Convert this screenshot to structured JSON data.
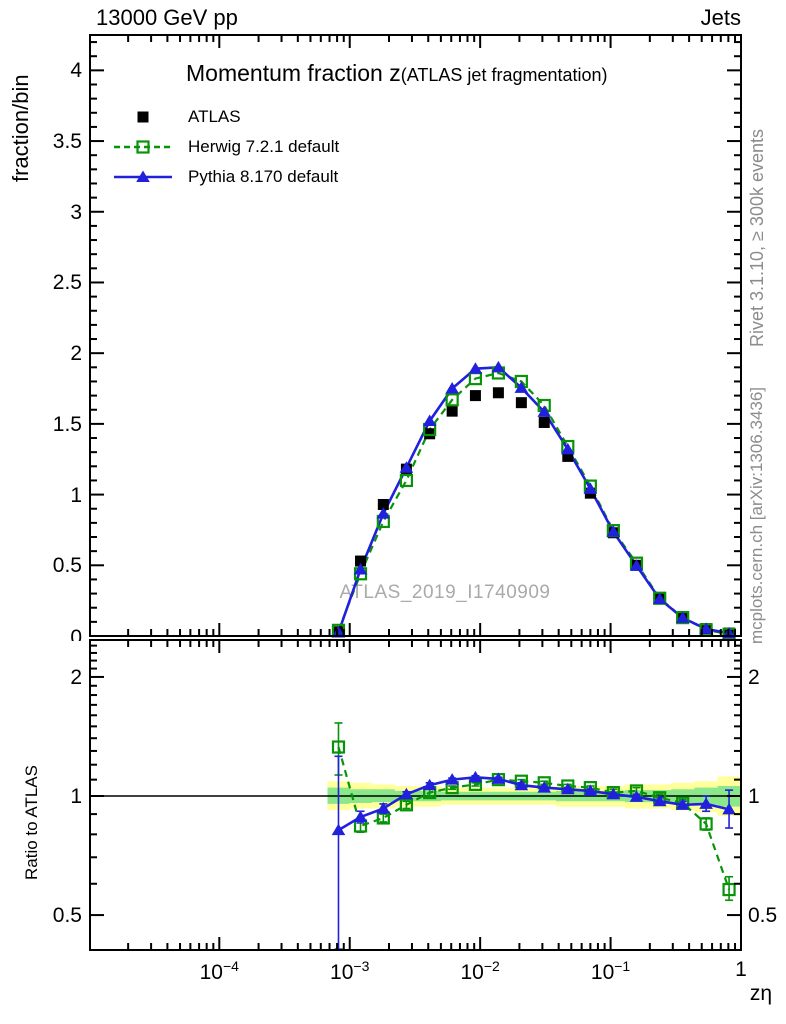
{
  "header": {
    "left": "13000 GeV pp",
    "right": "Jets"
  },
  "side_notes": {
    "top": "Rivet 3.1.10, ≥ 300k events",
    "bottom": "mcplots.cern.ch [arXiv:1306.3436]"
  },
  "watermark": "ATLAS_2019_I1740909",
  "chart_data": {
    "type": "line",
    "title_main": "Momentum fraction z",
    "title_sub": "(ATLAS jet fragmentation)",
    "xlabel": "zη",
    "ylabel": "fraction/bin",
    "ratio_ylabel": "Ratio to ATLAS",
    "x_axis": {
      "scale": "log",
      "min": 1.02e-05,
      "max": 1,
      "major_ticks": [
        {
          "value": 0.0001,
          "base": "10",
          "exp": "−4"
        },
        {
          "value": 0.001,
          "base": "10",
          "exp": "−3"
        },
        {
          "value": 0.01,
          "base": "10",
          "exp": "−2"
        },
        {
          "value": 0.1,
          "base": "10",
          "exp": "−1"
        },
        {
          "value": 1,
          "label": "1"
        }
      ]
    },
    "y_axis": {
      "scale": "linear",
      "min": 0,
      "max": 4.25,
      "major_step": 0.5,
      "minor_step": 0.1,
      "labels": [
        {
          "value": 0,
          "label": "0",
          "clip": true
        },
        {
          "value": 0.5,
          "label": "0.5"
        },
        {
          "value": 1,
          "label": "1"
        },
        {
          "value": 1.5,
          "label": "1.5"
        },
        {
          "value": 2,
          "label": "2"
        },
        {
          "value": 2.5,
          "label": "2.5"
        },
        {
          "value": 3,
          "label": "3"
        },
        {
          "value": 3.5,
          "label": "3.5"
        },
        {
          "value": 4,
          "label": "4"
        }
      ]
    },
    "ratio_axis": {
      "scale": "log",
      "min": 0.408,
      "max": 2.48,
      "labels": [
        {
          "value": 0.5,
          "label": "0.5"
        },
        {
          "value": 1,
          "label": "1"
        },
        {
          "value": 2,
          "label": "2"
        }
      ]
    },
    "x": [
      0.00082,
      0.00121,
      0.00181,
      0.00272,
      0.0041,
      0.0061,
      0.0092,
      0.0138,
      0.0207,
      0.031,
      0.047,
      0.07,
      0.105,
      0.158,
      0.238,
      0.357,
      0.54,
      0.81
    ],
    "series": [
      {
        "name": "ATLAS",
        "marker": "filled-square",
        "color": "#000000",
        "line": "none",
        "values": [
          0.03,
          0.53,
          0.93,
          1.18,
          1.43,
          1.59,
          1.7,
          1.72,
          1.65,
          1.51,
          1.27,
          1.01,
          0.73,
          0.5,
          0.27,
          0.135,
          0.052,
          0.021
        ]
      },
      {
        "name": "Herwig 7.2.1 default",
        "marker": "open-square",
        "color": "#089408",
        "line": "dashed",
        "values": [
          0.04,
          0.44,
          0.81,
          1.1,
          1.46,
          1.67,
          1.82,
          1.86,
          1.8,
          1.63,
          1.34,
          1.06,
          0.745,
          0.515,
          0.267,
          0.13,
          0.044,
          0.012
        ]
      },
      {
        "name": "Pythia 8.170 default",
        "marker": "filled-triangle",
        "color": "#2020dd",
        "line": "solid",
        "values": [
          0.025,
          0.47,
          0.865,
          1.19,
          1.52,
          1.75,
          1.89,
          1.9,
          1.755,
          1.585,
          1.32,
          1.04,
          0.737,
          0.497,
          0.262,
          0.128,
          0.05,
          0.019
        ]
      }
    ],
    "ratio_series": [
      {
        "name": "Herwig 7.2.1 default",
        "marker": "open-square",
        "color": "#089408",
        "line": "dashed",
        "values": [
          1.33,
          0.84,
          0.88,
          0.95,
          1.02,
          1.05,
          1.07,
          1.1,
          1.09,
          1.08,
          1.06,
          1.05,
          1.02,
          1.03,
          0.99,
          0.96,
          0.85,
          0.58
        ],
        "err_lo": [
          1.13,
          0.81,
          0.86,
          0.93,
          1.0,
          1.04,
          1.06,
          1.09,
          1.08,
          1.07,
          1.05,
          1.04,
          1.0,
          1.01,
          0.97,
          0.94,
          0.82,
          0.545
        ],
        "err_hi": [
          1.53,
          0.87,
          0.9,
          0.97,
          1.04,
          1.06,
          1.08,
          1.11,
          1.1,
          1.09,
          1.07,
          1.06,
          1.04,
          1.05,
          1.01,
          0.98,
          0.88,
          0.625
        ]
      },
      {
        "name": "Pythia 8.170 default",
        "marker": "filled-triangle",
        "color": "#2020dd",
        "line": "solid",
        "values": [
          0.82,
          0.885,
          0.93,
          1.01,
          1.065,
          1.1,
          1.115,
          1.105,
          1.065,
          1.05,
          1.04,
          1.03,
          1.01,
          0.995,
          0.97,
          0.95,
          0.955,
          0.925
        ],
        "err_lo": [
          0.41,
          0.855,
          0.905,
          0.995,
          1.05,
          1.09,
          1.105,
          1.095,
          1.05,
          1.04,
          1.03,
          1.02,
          1.0,
          0.98,
          0.95,
          0.93,
          0.915,
          0.83
        ],
        "err_hi": [
          1.26,
          0.915,
          0.955,
          1.025,
          1.08,
          1.11,
          1.125,
          1.115,
          1.08,
          1.06,
          1.05,
          1.04,
          1.02,
          1.01,
          0.99,
          0.97,
          1.0,
          1.035
        ]
      }
    ],
    "ratio_band": {
      "color_yellow": "#ffff9c",
      "color_green": "#8ae88a",
      "yellow_hi": [
        1.09,
        1.08,
        1.07,
        1.06,
        1.06,
        1.05,
        1.05,
        1.05,
        1.05,
        1.05,
        1.06,
        1.06,
        1.06,
        1.07,
        1.07,
        1.08,
        1.09,
        1.12
      ],
      "yellow_lo": [
        0.92,
        0.93,
        0.93,
        0.94,
        0.94,
        0.95,
        0.95,
        0.95,
        0.95,
        0.95,
        0.94,
        0.94,
        0.94,
        0.93,
        0.93,
        0.92,
        0.91,
        0.89
      ],
      "green_hi": [
        1.05,
        1.04,
        1.04,
        1.03,
        1.03,
        1.025,
        1.025,
        1.025,
        1.025,
        1.025,
        1.03,
        1.03,
        1.03,
        1.035,
        1.035,
        1.04,
        1.05,
        1.06
      ],
      "green_lo": [
        0.955,
        0.96,
        0.965,
        0.97,
        0.97,
        0.975,
        0.975,
        0.975,
        0.975,
        0.975,
        0.97,
        0.97,
        0.97,
        0.965,
        0.965,
        0.96,
        0.95,
        0.94
      ]
    }
  }
}
